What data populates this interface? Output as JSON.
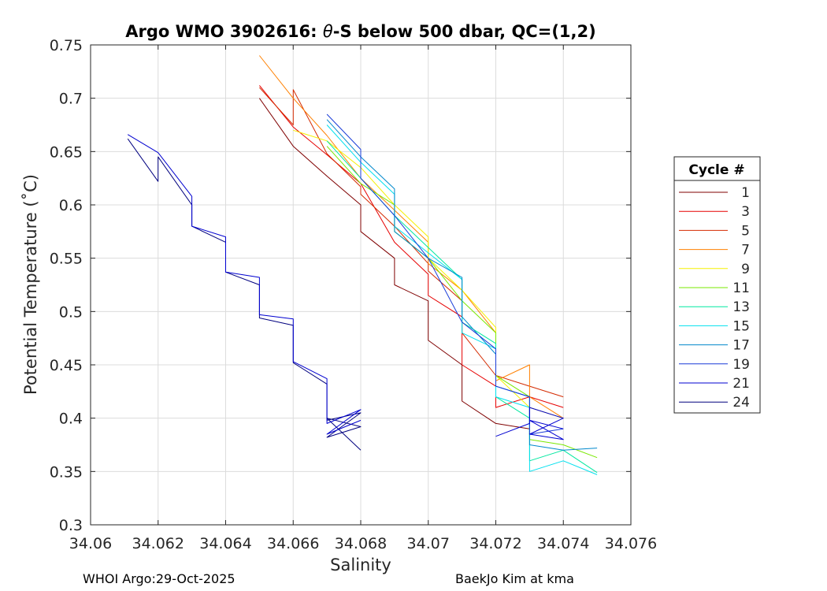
{
  "chart_data": {
    "type": "line",
    "title_prefix": "Argo WMO 3902616: ",
    "title_theta": "θ",
    "title_suffix": "-S below 500 dbar,  QC=(1,2)",
    "xlabel": "Salinity",
    "ylabel": "Potential Temperature (˚C)",
    "xlim": [
      34.06,
      34.076
    ],
    "ylim": [
      0.3,
      0.75
    ],
    "xticks": [
      34.06,
      34.062,
      34.064,
      34.066,
      34.068,
      34.07,
      34.072,
      34.074,
      34.076
    ],
    "xtick_labels": [
      "34.06",
      "34.062",
      "34.064",
      "34.066",
      "34.068",
      "34.07",
      "34.072",
      "34.074",
      "34.076"
    ],
    "yticks": [
      0.3,
      0.35,
      0.4,
      0.45,
      0.5,
      0.55,
      0.6,
      0.65,
      0.7,
      0.75
    ],
    "ytick_labels": [
      "0.3",
      "0.35",
      "0.4",
      "0.45",
      "0.5",
      "0.55",
      "0.6",
      "0.65",
      "0.7",
      "0.75"
    ],
    "grid": true,
    "legend": {
      "title": "Cycle #",
      "placement": "outside-right",
      "entries": [
        {
          "label": "1",
          "color": "#7f0000"
        },
        {
          "label": "3",
          "color": "#e60000"
        },
        {
          "label": "5",
          "color": "#d42a00"
        },
        {
          "label": "7",
          "color": "#ff8000"
        },
        {
          "label": "9",
          "color": "#f5f000"
        },
        {
          "label": "11",
          "color": "#7ae800"
        },
        {
          "label": "13",
          "color": "#00e8a0"
        },
        {
          "label": "15",
          "color": "#00e0ee"
        },
        {
          "label": "17",
          "color": "#0088cc"
        },
        {
          "label": "19",
          "color": "#1a3cd8"
        },
        {
          "label": "21",
          "color": "#0000d0"
        },
        {
          "label": "24",
          "color": "#00007f"
        }
      ]
    },
    "series": [
      {
        "name": "24",
        "color": "#00007f",
        "x": [
          34.0611,
          34.062,
          34.062,
          34.063,
          34.063,
          34.064,
          34.064,
          34.065,
          34.065,
          34.066,
          34.066,
          34.067,
          34.067,
          34.068,
          34.067,
          34.068,
          34.067,
          34.068
        ],
        "y": [
          0.662,
          0.622,
          0.645,
          0.6,
          0.58,
          0.565,
          0.537,
          0.525,
          0.494,
          0.487,
          0.452,
          0.432,
          0.398,
          0.405,
          0.382,
          0.392,
          0.4,
          0.37
        ]
      },
      {
        "name": "21",
        "color": "#0000d0",
        "x": [
          34.0611,
          34.062,
          34.063,
          34.063,
          34.064,
          34.064,
          34.065,
          34.065,
          34.066,
          34.066,
          34.067,
          34.067,
          34.068,
          34.067,
          34.068
        ],
        "y": [
          0.666,
          0.649,
          0.608,
          0.58,
          0.57,
          0.537,
          0.532,
          0.497,
          0.493,
          0.453,
          0.437,
          0.395,
          0.408,
          0.385,
          0.398
        ]
      },
      {
        "name": "1",
        "color": "#7f0000",
        "x": [
          34.065,
          34.066,
          34.067,
          34.068,
          34.068,
          34.069,
          34.069,
          34.07,
          34.07,
          34.071,
          34.071,
          34.072,
          34.073
        ],
        "y": [
          0.7,
          0.655,
          0.627,
          0.6,
          0.575,
          0.55,
          0.525,
          0.51,
          0.473,
          0.45,
          0.416,
          0.395,
          0.39
        ]
      },
      {
        "name": "3",
        "color": "#e60000",
        "x": [
          34.065,
          34.066,
          34.067,
          34.068,
          34.069,
          34.07,
          34.07,
          34.071,
          34.071,
          34.072,
          34.072,
          34.073,
          34.074
        ],
        "y": [
          0.712,
          0.673,
          0.647,
          0.62,
          0.565,
          0.535,
          0.515,
          0.495,
          0.45,
          0.43,
          0.41,
          0.42,
          0.41
        ]
      },
      {
        "name": "5",
        "color": "#d42a00",
        "x": [
          34.065,
          34.066,
          34.066,
          34.067,
          34.068,
          34.068,
          34.069,
          34.07,
          34.07,
          34.071,
          34.071,
          34.072,
          34.073,
          34.074
        ],
        "y": [
          0.71,
          0.675,
          0.708,
          0.648,
          0.617,
          0.61,
          0.58,
          0.545,
          0.538,
          0.51,
          0.48,
          0.44,
          0.43,
          0.42
        ]
      },
      {
        "name": "7",
        "color": "#ff8000",
        "x": [
          34.065,
          34.066,
          34.067,
          34.068,
          34.069,
          34.07,
          34.07,
          34.071,
          34.072,
          34.072,
          34.073,
          34.073,
          34.074
        ],
        "y": [
          0.74,
          0.7,
          0.665,
          0.625,
          0.595,
          0.565,
          0.545,
          0.52,
          0.48,
          0.435,
          0.45,
          0.42,
          0.4
        ]
      },
      {
        "name": "9",
        "color": "#f5f000",
        "x": [
          34.066,
          34.067,
          34.068,
          34.069,
          34.07,
          34.07,
          34.071,
          34.072,
          34.072,
          34.073,
          34.074
        ],
        "y": [
          0.67,
          0.66,
          0.635,
          0.6,
          0.57,
          0.55,
          0.52,
          0.485,
          0.44,
          0.41,
          0.4
        ]
      },
      {
        "name": "11",
        "color": "#7ae800",
        "x": [
          34.067,
          34.068,
          34.069,
          34.069,
          34.07,
          34.071,
          34.072,
          34.072,
          34.073,
          34.073,
          34.074,
          34.075
        ],
        "y": [
          0.655,
          0.62,
          0.6,
          0.575,
          0.55,
          0.51,
          0.48,
          0.44,
          0.42,
          0.38,
          0.375,
          0.363
        ]
      },
      {
        "name": "13",
        "color": "#00e8a0",
        "x": [
          34.067,
          34.068,
          34.069,
          34.07,
          34.071,
          34.071,
          34.072,
          34.072,
          34.073,
          34.073,
          34.074,
          34.075
        ],
        "y": [
          0.66,
          0.625,
          0.59,
          0.56,
          0.53,
          0.49,
          0.47,
          0.42,
          0.4,
          0.36,
          0.37,
          0.349
        ]
      },
      {
        "name": "15",
        "color": "#00e0ee",
        "x": [
          34.067,
          34.068,
          34.069,
          34.069,
          34.07,
          34.071,
          34.071,
          34.072,
          34.072,
          34.073,
          34.073,
          34.074,
          34.075
        ],
        "y": [
          0.675,
          0.64,
          0.61,
          0.58,
          0.555,
          0.53,
          0.48,
          0.465,
          0.42,
          0.41,
          0.35,
          0.36,
          0.347
        ]
      },
      {
        "name": "17",
        "color": "#0088cc",
        "x": [
          34.067,
          34.068,
          34.069,
          34.069,
          34.07,
          34.071,
          34.071,
          34.072,
          34.072,
          34.073,
          34.073,
          34.074,
          34.075
        ],
        "y": [
          0.68,
          0.645,
          0.615,
          0.575,
          0.55,
          0.532,
          0.495,
          0.46,
          0.43,
          0.42,
          0.375,
          0.37,
          0.372
        ]
      },
      {
        "name": "19",
        "color": "#1a3cd8",
        "x": [
          34.067,
          34.068,
          34.068,
          34.069,
          34.07,
          34.071,
          34.072,
          34.072,
          34.073,
          34.073,
          34.074
        ],
        "y": [
          0.685,
          0.652,
          0.625,
          0.59,
          0.55,
          0.49,
          0.465,
          0.43,
          0.42,
          0.385,
          0.39
        ]
      },
      {
        "name": "21",
        "color": "#0000d0",
        "x": [
          34.072,
          34.073,
          34.073,
          34.074,
          34.073,
          34.074,
          34.073,
          34.074
        ],
        "y": [
          0.383,
          0.395,
          0.41,
          0.4,
          0.385,
          0.38,
          0.398,
          0.39
        ]
      }
    ]
  },
  "footer": {
    "left": "WHOI Argo:29-Oct-2025",
    "right": "BaekJo Kim at kma"
  }
}
